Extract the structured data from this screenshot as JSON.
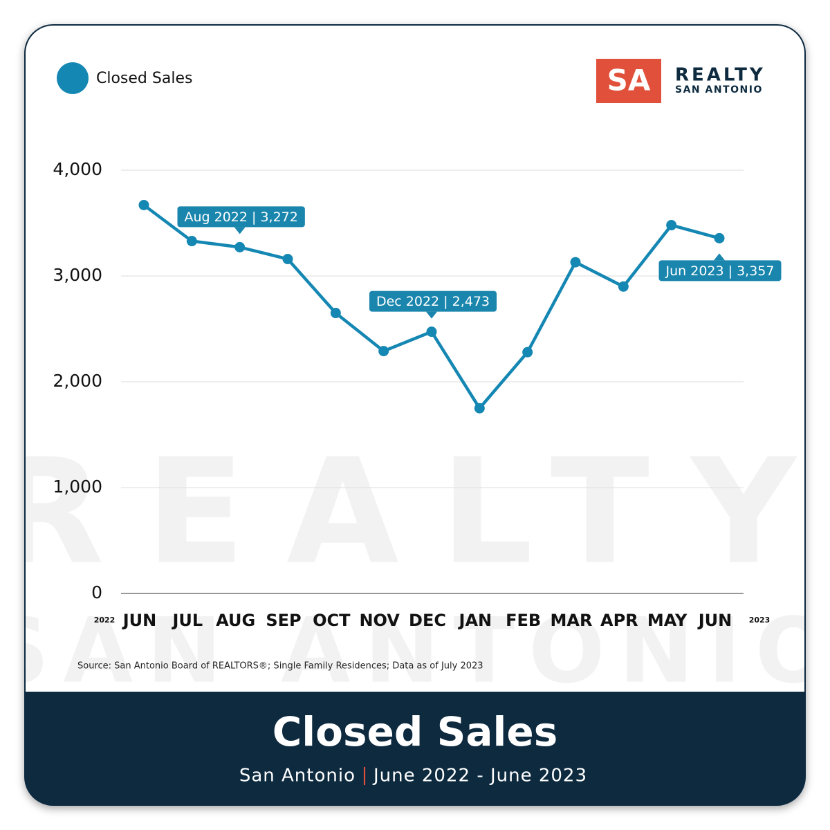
{
  "chart_data": {
    "type": "line",
    "legend": "Closed Sales",
    "categories": [
      "JUN",
      "JUL",
      "AUG",
      "SEP",
      "OCT",
      "NOV",
      "DEC",
      "JAN",
      "FEB",
      "MAR",
      "APR",
      "MAY",
      "JUN"
    ],
    "year_labels": [
      "2022",
      "2023"
    ],
    "series": [
      {
        "name": "Closed Sales",
        "color": "#1587b3",
        "values": [
          3670,
          3330,
          3272,
          3160,
          2650,
          2290,
          2473,
          1750,
          2280,
          3130,
          2900,
          3480,
          3357
        ],
        "value_labels": [
          null,
          null,
          "Aug 2022 | 3,272",
          null,
          null,
          null,
          "Dec 2022 | 2,473",
          null,
          null,
          null,
          null,
          null,
          "Jun 2023 | 3,357"
        ]
      }
    ],
    "ylim": [
      0,
      4000
    ],
    "yticks": [
      0,
      {
        "value": 1000,
        "label": "1,000"
      },
      {
        "value": 2000,
        "label": "2,000"
      },
      {
        "value": 3000,
        "label": "3,000"
      },
      {
        "value": 4000,
        "label": "4,000"
      }
    ],
    "grid": true,
    "source": "Source: San Antonio Board of REALTORS®; Single Family Residences; Data as of July 2023"
  },
  "logo": {
    "mark": "SA",
    "name": "REALTY",
    "city": "SAN ANTONIO"
  },
  "watermark": [
    "REALTY",
    "SAN ANTONIO"
  ],
  "footer": {
    "title": "Closed Sales",
    "place": "San Antonio",
    "separator": "|",
    "period": "June 2022 - June 2023"
  }
}
